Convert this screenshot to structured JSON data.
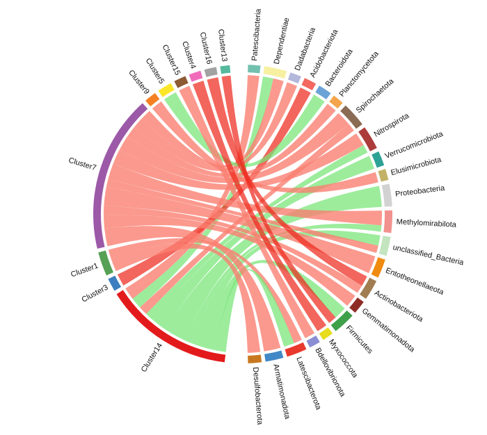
{
  "figure": {
    "background": "#ffffff",
    "description": "Chord diagram linking co-occurrence network clusters (left) to bacterial phyla (right)"
  },
  "chart_data": {
    "type": "chord",
    "title": "",
    "xlabel": "",
    "ylabel": "",
    "legend": "none",
    "grid": false,
    "layout": {
      "right_start_deg": 88,
      "right_end_deg": -88,
      "left_start_deg": 95,
      "left_end_deg": 263,
      "segment_gap_deg": 1.5,
      "label_color": "#111111"
    },
    "ribbon_colors": {
      "red": "#FA8072",
      "green": "#76E576",
      "bright": "#ED2B1E"
    },
    "ribbon_opacity": {
      "red": 0.8,
      "green": 0.72,
      "bright": 0.72
    },
    "clusters": [
      {
        "label": "Cluster13",
        "color": "#56B99E",
        "size": 4
      },
      {
        "label": "Cluster16",
        "color": "#A2A2A2",
        "size": 5
      },
      {
        "label": "Cluster4",
        "color": "#F06CBB",
        "size": 5
      },
      {
        "label": "Cluster15",
        "color": "#8C5A33",
        "size": 5
      },
      {
        "label": "Cluster5",
        "color": "#FBE629",
        "size": 6
      },
      {
        "label": "Cluster9",
        "color": "#F58021",
        "size": 5
      },
      {
        "label": "Cluster7",
        "color": "#9C59A8",
        "size": 65.5
      },
      {
        "label": "Cluster1",
        "color": "#56A156",
        "size": 10
      },
      {
        "label": "Cluster3",
        "color": "#3C7EC0",
        "size": 5.5
      },
      {
        "label": "Cluster14",
        "color": "#E31A1C",
        "size": 54
      }
    ],
    "taxa": [
      {
        "label": "Patescibacteria",
        "color": "#72C0AE",
        "size": 5.5
      },
      {
        "label": "Dependentiae",
        "color": "#F7F0A0",
        "size": 10
      },
      {
        "label": "Dadabacteria",
        "color": "#B3B7DB",
        "size": 5
      },
      {
        "label": "Acidobacteriota",
        "color": "#F3685F",
        "size": 5.5
      },
      {
        "label": "Bacteroidota",
        "color": "#6BA3D6",
        "size": 6
      },
      {
        "label": "Planctomycetota",
        "color": "#F3A44C",
        "size": 5
      },
      {
        "label": "Spirochaetota",
        "color": "#8A6B53",
        "size": 11
      },
      {
        "label": "Nitrospirota",
        "color": "#AC3B3B",
        "size": 10.5
      },
      {
        "label": "Verrucomicrobiota",
        "color": "#2EA296",
        "size": 6.5
      },
      {
        "label": "Elusimicrobiota",
        "color": "#C2B268",
        "size": 5
      },
      {
        "label": "Proteobacteria",
        "color": "#D2D2D2",
        "size": 10
      },
      {
        "label": "Methylomirabilota",
        "color": "#F2928E",
        "size": 10
      },
      {
        "label": "unclassified_Bacteria",
        "color": "#C2E4BE",
        "size": 8.5
      },
      {
        "label": "Entotheonellaeota",
        "color": "#EF8B0F",
        "size": 8.5
      },
      {
        "label": "Actinobacteriota",
        "color": "#A17D52",
        "size": 9
      },
      {
        "label": "Gemmatimonadota",
        "color": "#8E2B25",
        "size": 6
      },
      {
        "label": "Firmicutes",
        "color": "#3FA04A",
        "size": 10
      },
      {
        "label": "Myxococcota",
        "color": "#E8DC1F",
        "size": 5
      },
      {
        "label": "Bdellovibrionota",
        "color": "#8B8ED2",
        "size": 5
      },
      {
        "label": "Latescibacterota",
        "color": "#E8392C",
        "size": 9
      },
      {
        "label": "Armatimonadota",
        "color": "#4189C6",
        "size": 8
      },
      {
        "label": "Desulfobacterota",
        "color": "#C87820",
        "size": 6
      }
    ],
    "ribbons": [
      {
        "taxa": 0,
        "cluster": 9,
        "color": "red",
        "size": 5.5
      },
      {
        "taxa": 1,
        "cluster": 9,
        "color": "green",
        "size": 5
      },
      {
        "taxa": 1,
        "cluster": 6,
        "color": "red",
        "size": 5
      },
      {
        "taxa": 2,
        "cluster": 6,
        "color": "red",
        "size": 5
      },
      {
        "taxa": 3,
        "cluster": 8,
        "color": "bright",
        "size": 5.5
      },
      {
        "taxa": 4,
        "cluster": 4,
        "color": "green",
        "size": 6
      },
      {
        "taxa": 5,
        "cluster": 6,
        "color": "red",
        "size": 5
      },
      {
        "taxa": 6,
        "cluster": 6,
        "color": "red",
        "size": 7
      },
      {
        "taxa": 6,
        "cluster": 9,
        "color": "red",
        "size": 4
      },
      {
        "taxa": 7,
        "cluster": 6,
        "color": "red",
        "size": 6.5
      },
      {
        "taxa": 7,
        "cluster": 9,
        "color": "green",
        "size": 4
      },
      {
        "taxa": 8,
        "cluster": 9,
        "color": "green",
        "size": 6.5
      },
      {
        "taxa": 9,
        "cluster": 5,
        "color": "red",
        "size": 5
      },
      {
        "taxa": 10,
        "cluster": 9,
        "color": "green",
        "size": 10
      },
      {
        "taxa": 11,
        "cluster": 6,
        "color": "red",
        "size": 7
      },
      {
        "taxa": 11,
        "cluster": 9,
        "color": "green",
        "size": 3
      },
      {
        "taxa": 12,
        "cluster": 9,
        "color": "green",
        "size": 5
      },
      {
        "taxa": 12,
        "cluster": 6,
        "color": "red",
        "size": 3.5
      },
      {
        "taxa": 13,
        "cluster": 6,
        "color": "red",
        "size": 8.5
      },
      {
        "taxa": 14,
        "cluster": 1,
        "color": "bright",
        "size": 5
      },
      {
        "taxa": 14,
        "cluster": 6,
        "color": "red",
        "size": 4
      },
      {
        "taxa": 15,
        "cluster": 6,
        "color": "red",
        "size": 6
      },
      {
        "taxa": 16,
        "cluster": 9,
        "color": "green",
        "size": 6
      },
      {
        "taxa": 16,
        "cluster": 0,
        "color": "bright",
        "size": 4
      },
      {
        "taxa": 17,
        "cluster": 2,
        "color": "bright",
        "size": 5
      },
      {
        "taxa": 18,
        "cluster": 3,
        "color": "red",
        "size": 5
      },
      {
        "taxa": 19,
        "cluster": 7,
        "color": "red",
        "size": 4
      },
      {
        "taxa": 19,
        "cluster": 9,
        "color": "green",
        "size": 5
      },
      {
        "taxa": 20,
        "cluster": 6,
        "color": "red",
        "size": 8
      },
      {
        "taxa": 21,
        "cluster": 7,
        "color": "red",
        "size": 6
      }
    ]
  }
}
